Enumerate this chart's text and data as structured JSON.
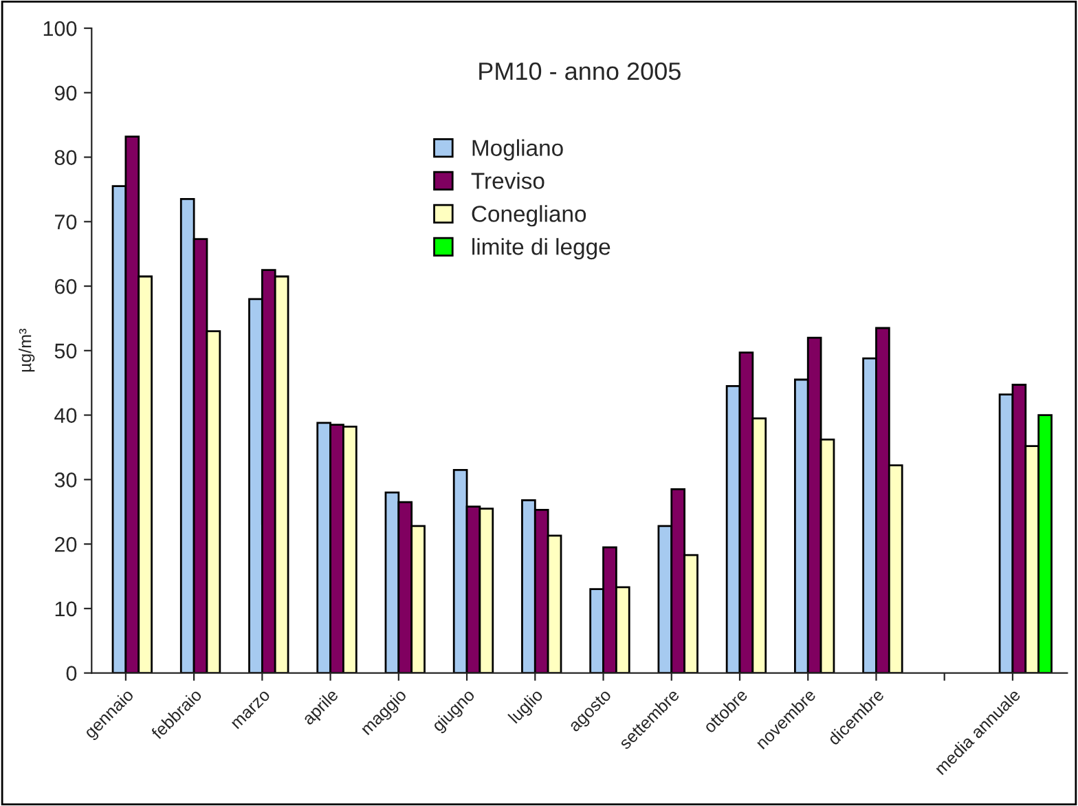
{
  "chart_data": {
    "type": "bar",
    "title": "PM10 - anno 2005",
    "ylabel": "µg/m³",
    "categories": [
      "gennaio",
      "febbraio",
      "marzo",
      "aprile",
      "maggio",
      "giugno",
      "luglio",
      "agosto",
      "settembre",
      "ottobre",
      "novembre",
      "dicembre",
      null,
      "media annuale"
    ],
    "series": [
      {
        "name": "Mogliano",
        "color": "#a6caf0",
        "values": [
          75.5,
          73.5,
          58,
          38.8,
          28,
          31.5,
          26.8,
          13,
          22.8,
          44.5,
          45.5,
          48.8,
          null,
          43.2
        ]
      },
      {
        "name": "Treviso",
        "color": "#800060",
        "values": [
          83.2,
          67.3,
          62.5,
          38.5,
          26.5,
          25.8,
          25.3,
          19.5,
          28.5,
          49.7,
          52,
          53.5,
          null,
          44.7
        ]
      },
      {
        "name": "Conegliano",
        "color": "#ffffc0",
        "values": [
          61.5,
          53,
          61.5,
          38.2,
          22.8,
          25.5,
          21.3,
          13.3,
          18.3,
          39.5,
          36.2,
          32.2,
          null,
          35.2
        ]
      },
      {
        "name": "limite di legge",
        "color": "#00ff00",
        "values": [
          null,
          null,
          null,
          null,
          null,
          null,
          null,
          null,
          null,
          null,
          null,
          null,
          null,
          40
        ]
      }
    ],
    "ylim": [
      0,
      100
    ],
    "yticks": [
      0,
      10,
      20,
      30,
      40,
      50,
      60,
      70,
      80,
      90,
      100
    ],
    "grid": false,
    "legend": "top left"
  }
}
